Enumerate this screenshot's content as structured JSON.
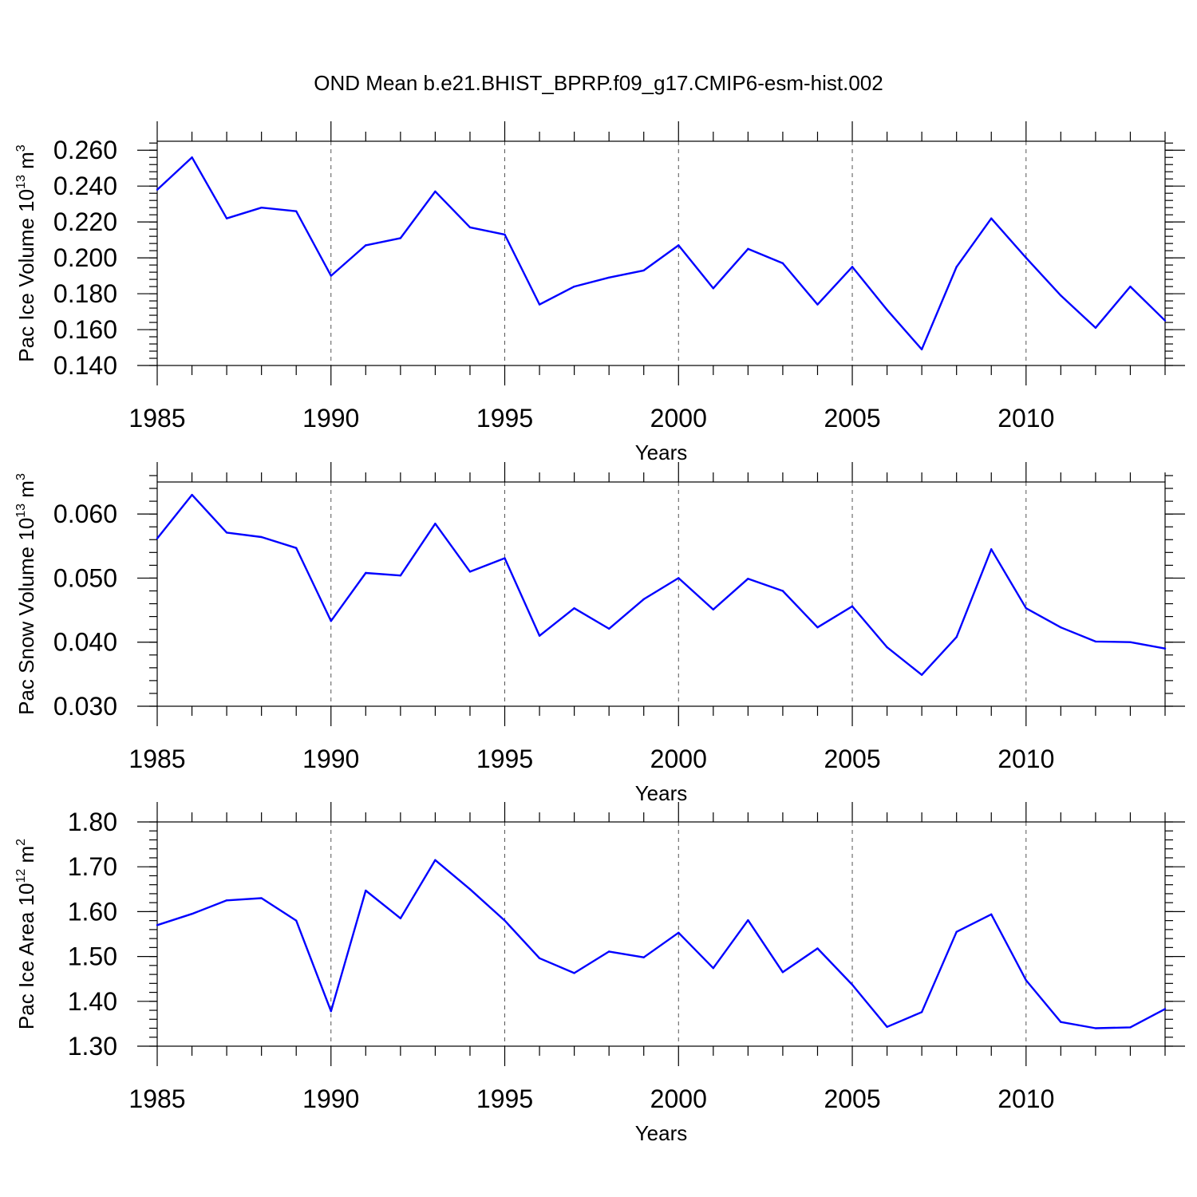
{
  "title": "OND Mean b.e21.BHIST_BPRP.f09_g17.CMIP6-esm-hist.002",
  "colors": {
    "line": "#0000ff",
    "axes": "#000000",
    "grid": "#555555"
  },
  "chart_data": [
    {
      "type": "line",
      "xlabel": "Years",
      "ylabel": "Pac Ice Volume 10",
      "ylabel_exp": "13",
      "ylabel_unit": " m",
      "ylabel_unit_exp": "3",
      "xlim": [
        1985,
        2014
      ],
      "ylim": [
        0.14,
        0.265
      ],
      "x_ticks": [
        1985,
        1990,
        1995,
        2000,
        2005,
        2010
      ],
      "x_tick_labels": [
        "1985",
        "1990",
        "1995",
        "2000",
        "2005",
        "2010"
      ],
      "y_ticks": [
        0.14,
        0.16,
        0.18,
        0.2,
        0.22,
        0.24,
        0.26
      ],
      "y_tick_labels": [
        "0.140",
        "0.160",
        "0.180",
        "0.200",
        "0.220",
        "0.240",
        "0.260"
      ],
      "y_minor_step": 0.004,
      "grid": "vertical dashed at major x ticks",
      "series": [
        {
          "x": [
            1985,
            1986,
            1987,
            1988,
            1989,
            1990,
            1991,
            1992,
            1993,
            1994,
            1995,
            1996,
            1997,
            1998,
            1999,
            2000,
            2001,
            2002,
            2003,
            2004,
            2005,
            2006,
            2007,
            2008,
            2009,
            2010,
            2011,
            2012,
            2013,
            2014
          ],
          "values": [
            0.238,
            0.256,
            0.222,
            0.228,
            0.226,
            0.19,
            0.207,
            0.211,
            0.237,
            0.217,
            0.213,
            0.174,
            0.184,
            0.189,
            0.193,
            0.207,
            0.183,
            0.205,
            0.197,
            0.174,
            0.195,
            0.171,
            0.149,
            0.195,
            0.222,
            0.2,
            0.179,
            0.161,
            0.184,
            0.165
          ]
        }
      ]
    },
    {
      "type": "line",
      "xlabel": "Years",
      "ylabel": "Pac Snow Volume 10",
      "ylabel_exp": "13",
      "ylabel_unit": " m",
      "ylabel_unit_exp": "3",
      "xlim": [
        1985,
        2014
      ],
      "ylim": [
        0.03,
        0.065
      ],
      "x_ticks": [
        1985,
        1990,
        1995,
        2000,
        2005,
        2010
      ],
      "x_tick_labels": [
        "1985",
        "1990",
        "1995",
        "2000",
        "2005",
        "2010"
      ],
      "y_ticks": [
        0.03,
        0.04,
        0.05,
        0.06
      ],
      "y_tick_labels": [
        "0.030",
        "0.040",
        "0.050",
        "0.060"
      ],
      "y_minor_step": 0.002,
      "grid": "vertical dashed at major x ticks",
      "series": [
        {
          "x": [
            1985,
            1986,
            1987,
            1988,
            1989,
            1990,
            1991,
            1992,
            1993,
            1994,
            1995,
            1996,
            1997,
            1998,
            1999,
            2000,
            2001,
            2002,
            2003,
            2004,
            2005,
            2006,
            2007,
            2008,
            2009,
            2010,
            2011,
            2012,
            2013,
            2014
          ],
          "values": [
            0.0562,
            0.063,
            0.0571,
            0.0564,
            0.0547,
            0.0433,
            0.0508,
            0.0504,
            0.0585,
            0.051,
            0.0531,
            0.041,
            0.0453,
            0.0421,
            0.0467,
            0.05,
            0.0451,
            0.0499,
            0.048,
            0.0423,
            0.0456,
            0.0392,
            0.0349,
            0.0408,
            0.0545,
            0.0453,
            0.0423,
            0.0401,
            0.04,
            0.039
          ]
        }
      ]
    },
    {
      "type": "line",
      "xlabel": "Years",
      "ylabel": "Pac Ice Area 10",
      "ylabel_exp": "12",
      "ylabel_unit": " m",
      "ylabel_unit_exp": "2",
      "xlim": [
        1985,
        2014
      ],
      "ylim": [
        1.3,
        1.8
      ],
      "x_ticks": [
        1985,
        1990,
        1995,
        2000,
        2005,
        2010
      ],
      "x_tick_labels": [
        "1985",
        "1990",
        "1995",
        "2000",
        "2005",
        "2010"
      ],
      "y_ticks": [
        1.3,
        1.4,
        1.5,
        1.6,
        1.7,
        1.8
      ],
      "y_tick_labels": [
        "1.30",
        "1.40",
        "1.50",
        "1.60",
        "1.70",
        "1.80"
      ],
      "y_minor_step": 0.02,
      "grid": "vertical dashed at major x ticks",
      "series": [
        {
          "x": [
            1985,
            1986,
            1987,
            1988,
            1989,
            1990,
            1991,
            1992,
            1993,
            1994,
            1995,
            1996,
            1997,
            1998,
            1999,
            2000,
            2001,
            2002,
            2003,
            2004,
            2005,
            2006,
            2007,
            2008,
            2009,
            2010,
            2011,
            2012,
            2013,
            2014
          ],
          "values": [
            1.57,
            1.595,
            1.625,
            1.63,
            1.58,
            1.378,
            1.647,
            1.585,
            1.715,
            1.65,
            1.58,
            1.496,
            1.463,
            1.511,
            1.498,
            1.553,
            1.474,
            1.581,
            1.465,
            1.518,
            1.437,
            1.343,
            1.376,
            1.555,
            1.594,
            1.447,
            1.354,
            1.34,
            1.342,
            1.383
          ]
        }
      ]
    }
  ]
}
